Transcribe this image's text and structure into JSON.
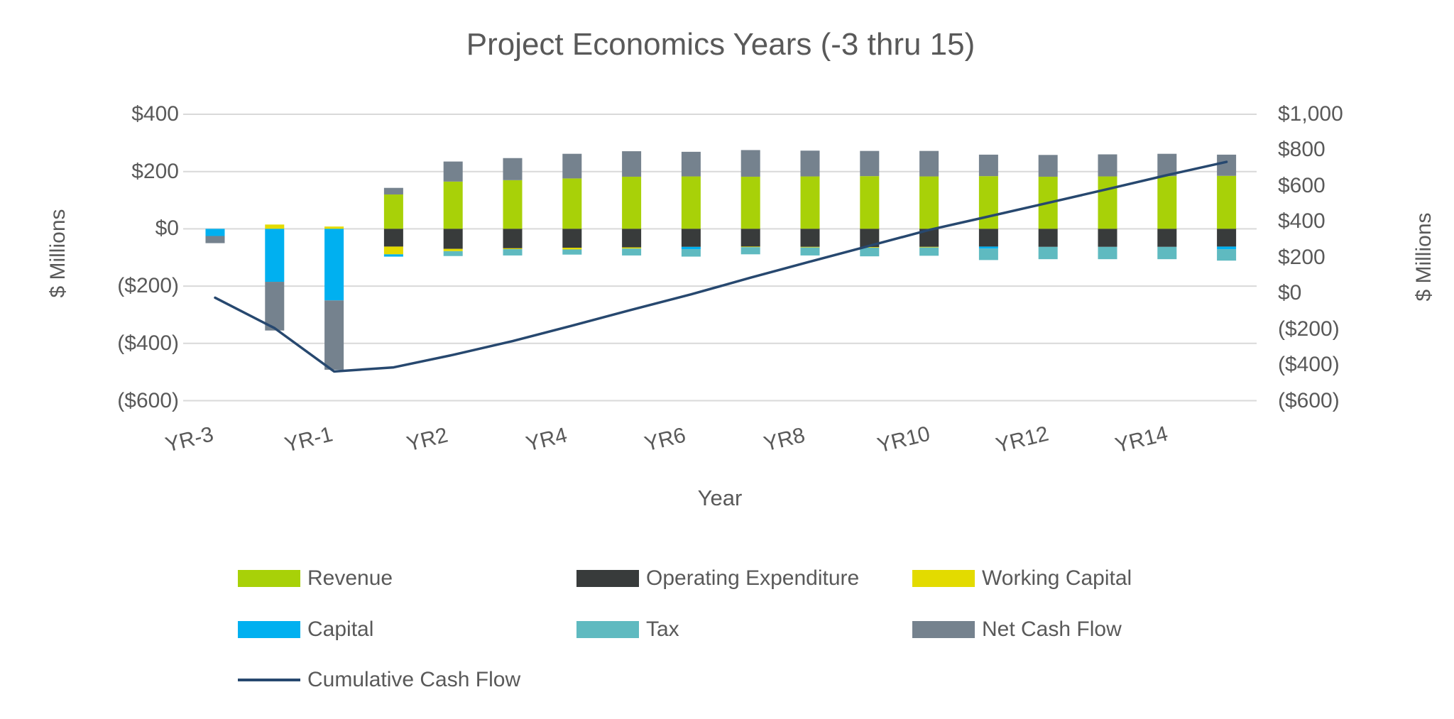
{
  "title": "Project Economics Years (-3 thru 15)",
  "colors": {
    "revenue": "#A8D108",
    "operating_expenditure": "#383B3B",
    "working_capital": "#E3DB00",
    "capital": "#00B0F0",
    "tax": "#5FBAC0",
    "net_cash_flow": "#75828E",
    "cumulative_line": "#27486F",
    "gridline": "#D9D9D9",
    "text": "#595959"
  },
  "chart_data": {
    "type": "bar",
    "subtype": "stacked-bars-with-line",
    "title": "Project Economics Years (-3 thru 15)",
    "xlabel": "Year",
    "categories": [
      "YR-3",
      "YR-2",
      "YR-1",
      "YR1",
      "YR2",
      "YR3",
      "YR4",
      "YR5",
      "YR6",
      "YR7",
      "YR8",
      "YR9",
      "YR10",
      "YR11",
      "YR12",
      "YR13",
      "YR14",
      "YR15"
    ],
    "x_tick_labels_shown": [
      "YR-3",
      "YR-1",
      "YR2",
      "YR4",
      "YR6",
      "YR8",
      "YR10",
      "YR12",
      "YR14"
    ],
    "left_axis": {
      "title": "$ Millions",
      "ylim": [
        -600,
        400
      ],
      "tick_values": [
        400,
        200,
        0,
        -200,
        -400,
        -600
      ],
      "tick_labels": [
        "$400",
        "$200",
        "$0",
        "($200)",
        "($400)",
        "($600)"
      ]
    },
    "right_axis": {
      "title": "$ Millions",
      "ylim": [
        -600,
        1000
      ],
      "tick_values": [
        1000,
        800,
        600,
        400,
        200,
        0,
        -200,
        -400,
        -600
      ],
      "tick_labels": [
        "$1,000",
        "$800",
        "$600",
        "$400",
        "$200",
        "$0",
        "($200)",
        "($400)",
        "($600)"
      ]
    },
    "grid": true,
    "series": [
      {
        "key": "revenue",
        "name": "Revenue",
        "values": [
          0,
          0,
          0,
          120,
          165,
          170,
          176,
          182,
          183,
          182,
          183,
          184,
          183,
          184,
          182,
          183,
          184,
          185
        ]
      },
      {
        "key": "operating_expenditure",
        "name": "Operating Expenditure",
        "values": [
          0,
          0,
          0,
          -62,
          -70,
          -68,
          -66,
          -65,
          -63,
          -62,
          -63,
          -64,
          -63,
          -62,
          -63,
          -63,
          -63,
          -62
        ]
      },
      {
        "key": "working_capital",
        "name": "Working Capital",
        "values": [
          0,
          15,
          8,
          -27,
          -8,
          -3,
          -6,
          -4,
          0,
          -2,
          -2,
          -2,
          -2,
          0,
          0,
          0,
          0,
          0
        ]
      },
      {
        "key": "capital",
        "name": "Capital",
        "values": [
          -25,
          -185,
          -250,
          -8,
          0,
          0,
          0,
          0,
          -8,
          0,
          0,
          0,
          0,
          -7,
          0,
          0,
          0,
          -9
        ]
      },
      {
        "key": "tax",
        "name": "Tax",
        "values": [
          0,
          0,
          0,
          0,
          -17,
          -22,
          -18,
          -24,
          -26,
          -25,
          -28,
          -30,
          -29,
          -40,
          -43,
          -43,
          -43,
          -40
        ]
      },
      {
        "key": "net_cash_flow",
        "name": "Net Cash Flow",
        "values": [
          -25,
          -170,
          -242,
          23,
          70,
          77,
          86,
          89,
          86,
          93,
          90,
          88,
          89,
          75,
          76,
          77,
          78,
          74
        ]
      }
    ],
    "line_series": {
      "key": "cumulative_line",
      "name": "Cumulative Cash Flow",
      "axis": "right",
      "values": [
        -25,
        -195,
        -437,
        -414,
        -344,
        -267,
        -181,
        -92,
        -6,
        87,
        177,
        265,
        354,
        429,
        505,
        582,
        660,
        734
      ]
    },
    "legend_position": "bottom",
    "legend_rows": [
      [
        {
          "key": "revenue",
          "label": "Revenue"
        },
        {
          "key": "operating_expenditure",
          "label": "Operating Expenditure"
        },
        {
          "key": "working_capital",
          "label": "Working Capital"
        }
      ],
      [
        {
          "key": "capital",
          "label": "Capital"
        },
        {
          "key": "tax",
          "label": "Tax"
        },
        {
          "key": "net_cash_flow",
          "label": "Net Cash Flow"
        }
      ],
      [
        {
          "key": "cumulative_line",
          "label": "Cumulative Cash Flow",
          "swatch": "line"
        }
      ]
    ]
  }
}
